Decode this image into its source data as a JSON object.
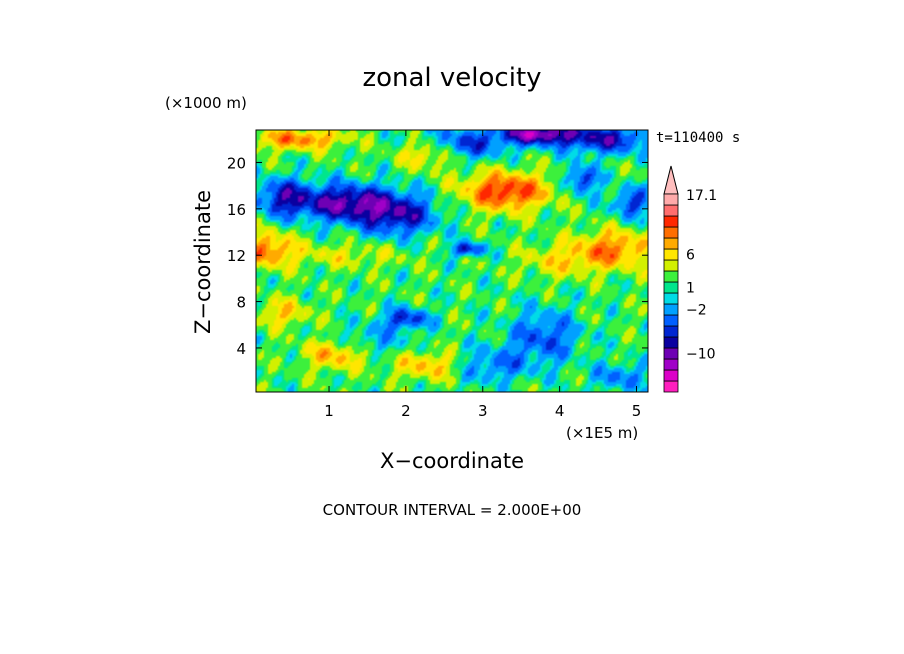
{
  "chart_data": {
    "type": "heatmap",
    "title": "zonal velocity",
    "xlabel": "X−coordinate",
    "ylabel": "Z−coordinate",
    "x_scale_label": "(×1E5 m)",
    "y_scale_label": "(×1000 m)",
    "time_label": "t=110400 s",
    "footer": "CONTOUR INTERVAL = 2.000E+00",
    "xlim": [
      0.05,
      5.15
    ],
    "ylim": [
      0.2,
      22.8
    ],
    "x_ticks": [
      1,
      2,
      3,
      4,
      5
    ],
    "y_ticks": [
      4,
      8,
      12,
      16,
      20
    ],
    "x_tick_labels": [
      "1",
      "2",
      "3",
      "4",
      "5"
    ],
    "y_tick_labels": [
      "4",
      "8",
      "12",
      "16",
      "20"
    ],
    "colorbar": {
      "labels": [
        {
          "text": "17.1",
          "value": 17.1
        },
        {
          "text": "6",
          "value": 6
        },
        {
          "text": "1",
          "value": 1
        },
        {
          "text": "−2",
          "value": -2
        },
        {
          "text": "−10",
          "value": -10
        }
      ],
      "levels": [
        -16,
        -14,
        -12,
        -10,
        -8,
        -6,
        -4,
        -2,
        0,
        1,
        2,
        4,
        6,
        8,
        10,
        12,
        14,
        16
      ],
      "colors": [
        "#ff1ebe",
        "#dc00c8",
        "#a000c8",
        "#6e00b4",
        "#0a00a0",
        "#0026d2",
        "#0060ff",
        "#00a0ff",
        "#00dce6",
        "#00e68c",
        "#3cf03c",
        "#d2f000",
        "#ffe600",
        "#ffaa00",
        "#ff6e00",
        "#ff2800",
        "#ff6e6e",
        "#ffaaaa"
      ],
      "overflow_color": "#ffbebe"
    },
    "field_features": [
      {
        "x": 1.2,
        "z": 16.5,
        "amp": -11,
        "sx": 0.6,
        "sz": 1.6
      },
      {
        "x": 1.9,
        "z": 15.5,
        "amp": -9,
        "sx": 0.5,
        "sz": 1.8
      },
      {
        "x": 0.4,
        "z": 17.0,
        "amp": -8,
        "sx": 0.35,
        "sz": 1.6
      },
      {
        "x": 2.6,
        "z": 21.5,
        "amp": -9,
        "sx": 0.6,
        "sz": 1.3
      },
      {
        "x": 3.7,
        "z": 22.5,
        "amp": -13,
        "sx": 0.5,
        "sz": 0.9
      },
      {
        "x": 4.6,
        "z": 22.0,
        "amp": -9,
        "sx": 0.6,
        "sz": 1.2
      },
      {
        "x": 4.3,
        "z": 18.5,
        "amp": -8,
        "sx": 0.2,
        "sz": 1.2
      },
      {
        "x": 4.95,
        "z": 16.5,
        "amp": -7,
        "sx": 0.25,
        "sz": 1.3
      },
      {
        "x": 3.3,
        "z": 17.5,
        "amp": 11,
        "sx": 0.55,
        "sz": 1.6
      },
      {
        "x": 2.3,
        "z": 21.0,
        "amp": 9,
        "sx": 0.4,
        "sz": 1.3
      },
      {
        "x": 0.6,
        "z": 22.0,
        "amp": 8,
        "sx": 0.6,
        "sz": 0.9
      },
      {
        "x": 0.2,
        "z": 12.5,
        "amp": 8,
        "sx": 0.35,
        "sz": 1.5
      },
      {
        "x": 4.7,
        "z": 12.5,
        "amp": 8,
        "sx": 0.5,
        "sz": 1.6
      },
      {
        "x": 4.0,
        "z": 11.5,
        "amp": 4,
        "sx": 0.5,
        "sz": 1.4
      },
      {
        "x": 3.8,
        "z": 5.0,
        "amp": -6,
        "sx": 0.45,
        "sz": 2.3
      },
      {
        "x": 3.1,
        "z": 2.5,
        "amp": -5,
        "sx": 0.5,
        "sz": 1.5
      },
      {
        "x": 4.8,
        "z": 1.5,
        "amp": -5,
        "sx": 0.35,
        "sz": 1.2
      },
      {
        "x": 1.5,
        "z": 4.5,
        "amp": -4,
        "sx": 0.5,
        "sz": 1.3
      },
      {
        "x": 2.0,
        "z": 6.5,
        "amp": -8,
        "sx": 0.3,
        "sz": 0.9
      },
      {
        "x": 1.1,
        "z": 3.5,
        "amp": 7,
        "sx": 0.4,
        "sz": 1.3
      },
      {
        "x": 2.3,
        "z": 2.5,
        "amp": 6,
        "sx": 0.45,
        "sz": 1.2
      },
      {
        "x": 0.4,
        "z": 7.0,
        "amp": 5,
        "sx": 0.35,
        "sz": 1.2
      },
      {
        "x": 2.8,
        "z": 12.5,
        "amp": -9,
        "sx": 0.2,
        "sz": 0.6
      },
      {
        "x": 1.2,
        "z": 12.0,
        "amp": 3,
        "sx": 0.8,
        "sz": 1.0
      }
    ]
  }
}
